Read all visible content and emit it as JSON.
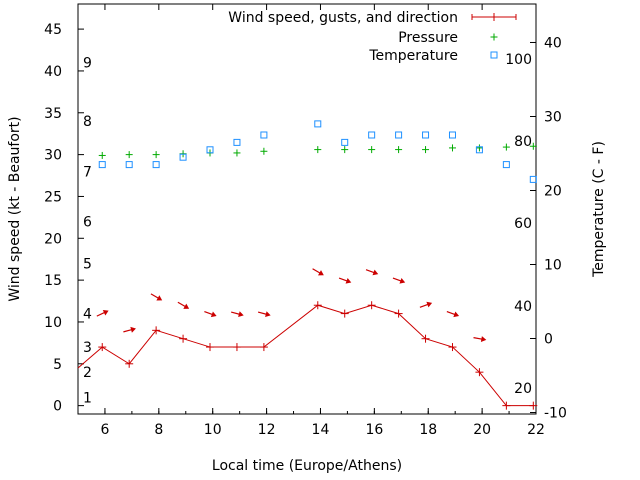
{
  "chart_data": {
    "type": "line",
    "xlabel": "Local time (Europe/Athens)",
    "ylabel": "Wind speed (kt - Beaufort)",
    "y2label": "Temperature (C - F)",
    "xlim": [
      5,
      22
    ],
    "ylim": [
      -1,
      48
    ],
    "y2lim": [
      -10.2,
      45.2
    ],
    "x_ticks": [
      6,
      8,
      10,
      12,
      14,
      16,
      18,
      20,
      22
    ],
    "y_ticks": [
      0,
      5,
      10,
      15,
      20,
      25,
      30,
      35,
      40,
      45
    ],
    "y2_ticks": [
      -10,
      0,
      10,
      20,
      30,
      40
    ],
    "beaufort_labels": [
      {
        "label": "1",
        "y": 1
      },
      {
        "label": "2",
        "y": 4
      },
      {
        "label": "3",
        "y": 7
      },
      {
        "label": "4",
        "y": 11
      },
      {
        "label": "5",
        "y": 17
      },
      {
        "label": "6",
        "y": 22
      },
      {
        "label": "7",
        "y": 28
      },
      {
        "label": "8",
        "y": 34
      },
      {
        "label": "9",
        "y": 41
      }
    ],
    "fahrenheit_labels": [
      {
        "label": "20",
        "c": -6.7
      },
      {
        "label": "40",
        "c": 4.4
      },
      {
        "label": "60",
        "c": 15.6
      },
      {
        "label": "80",
        "c": 26.7
      },
      {
        "label": "100",
        "c": 37.8
      }
    ],
    "legend": [
      {
        "name": "Wind speed, gusts, and direction",
        "color": "#cc0000",
        "style": "line-plus"
      },
      {
        "name": "Pressure",
        "color": "#00aa00",
        "style": "plus"
      },
      {
        "name": "Temperature",
        "color": "#1e90ff",
        "style": "square"
      }
    ],
    "legend_position": "top-right",
    "series": [
      {
        "name": "Wind speed, gusts, and direction",
        "color": "#cc0000",
        "axis": "y1",
        "x": [
          5,
          5.9,
          6.9,
          7.9,
          8.9,
          9.9,
          10.9,
          11.9,
          13.9,
          14.9,
          15.9,
          16.9,
          17.9,
          18.9,
          19.9,
          20.9,
          21.9
        ],
        "y": [
          4.5,
          7,
          5,
          9,
          8,
          7,
          7,
          7,
          12,
          11,
          12,
          11,
          8,
          7,
          4,
          0,
          0
        ]
      },
      {
        "name": "Pressure",
        "color": "#00aa00",
        "axis": "y1",
        "x": [
          5.9,
          6.9,
          7.9,
          8.9,
          9.9,
          10.9,
          11.9,
          13.9,
          14.9,
          15.9,
          16.9,
          17.9,
          18.9,
          19.9,
          20.9,
          21.9
        ],
        "y": [
          29.9,
          30,
          30,
          30.1,
          30.2,
          30.2,
          30.4,
          30.6,
          30.6,
          30.6,
          30.6,
          30.6,
          30.8,
          30.8,
          30.9,
          31
        ]
      },
      {
        "name": "Temperature",
        "color": "#1e90ff",
        "axis": "y2",
        "x": [
          5.9,
          6.9,
          7.9,
          8.9,
          9.9,
          10.9,
          11.9,
          13.9,
          14.9,
          15.9,
          16.9,
          17.9,
          18.9,
          19.9,
          20.9,
          21.9
        ],
        "y": [
          23.5,
          23.5,
          23.5,
          24.5,
          25.5,
          26.5,
          27.5,
          29,
          26.5,
          27.5,
          27.5,
          27.5,
          27.5,
          25.5,
          23.5,
          21.5
        ]
      }
    ],
    "wind_arrows": [
      {
        "x": 5.9,
        "speed": 11,
        "angle": -25
      },
      {
        "x": 6.9,
        "speed": 9,
        "angle": -15
      },
      {
        "x": 7.9,
        "speed": 13,
        "angle": 30
      },
      {
        "x": 8.9,
        "speed": 12,
        "angle": 30
      },
      {
        "x": 9.9,
        "speed": 11,
        "angle": 20
      },
      {
        "x": 10.9,
        "speed": 11,
        "angle": 15
      },
      {
        "x": 11.9,
        "speed": 11,
        "angle": 15
      },
      {
        "x": 13.9,
        "speed": 16,
        "angle": 30
      },
      {
        "x": 14.9,
        "speed": 15,
        "angle": 20
      },
      {
        "x": 15.9,
        "speed": 16,
        "angle": 20
      },
      {
        "x": 16.9,
        "speed": 15,
        "angle": 20
      },
      {
        "x": 17.9,
        "speed": 12,
        "angle": -20
      },
      {
        "x": 18.9,
        "speed": 11,
        "angle": 20
      },
      {
        "x": 19.9,
        "speed": 8,
        "angle": 10
      }
    ]
  }
}
